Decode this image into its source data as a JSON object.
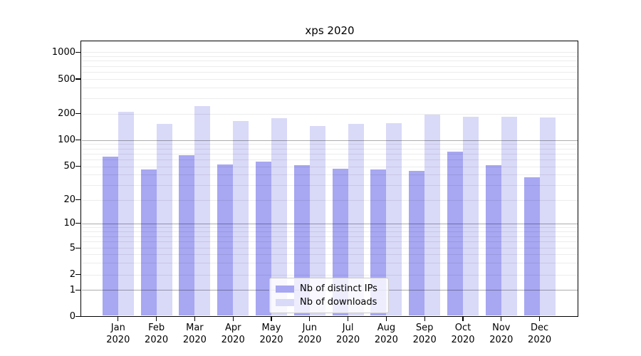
{
  "chart_data": {
    "type": "bar",
    "title": "xps 2020",
    "categories": [
      "Jan 2020",
      "Feb 2020",
      "Mar 2020",
      "Apr 2020",
      "May 2020",
      "Jun 2020",
      "Jul 2020",
      "Aug 2020",
      "Sep 2020",
      "Oct 2020",
      "Nov 2020",
      "Dec 2020"
    ],
    "series": [
      {
        "name": "Nb of distinct IPs",
        "color": "#a7a7f2",
        "values": [
          64,
          46,
          67,
          52,
          56,
          51,
          47,
          46,
          44,
          73,
          51,
          37
        ]
      },
      {
        "name": "Nb of downloads",
        "color": "#d9d9f8",
        "values": [
          210,
          153,
          243,
          165,
          177,
          144,
          152,
          156,
          196,
          184,
          185,
          181
        ]
      }
    ],
    "xlabel": "",
    "ylabel": "",
    "y_axis": {
      "scale": "log-like",
      "tick_values": [
        0,
        1,
        2,
        5,
        10,
        20,
        50,
        100,
        200,
        500,
        1000
      ],
      "major_grid_values": [
        1,
        10,
        100
      ],
      "ylim": [
        0,
        1325
      ]
    },
    "grid": "on",
    "legend_position": "lower-center-inside"
  }
}
